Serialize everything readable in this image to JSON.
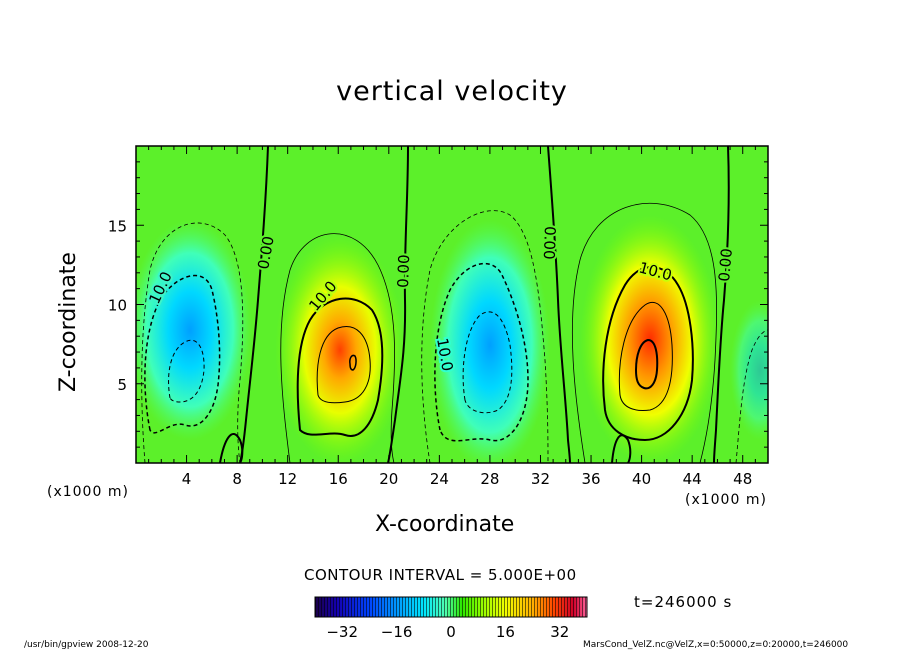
{
  "chart_data": {
    "type": "heatmap",
    "title": "vertical velocity",
    "xlabel": "X-coordinate",
    "ylabel": "Z-coordinate",
    "x_unit": "(x1000 m)",
    "y_unit": "(x1000 m)",
    "xlim": [
      0,
      50
    ],
    "ylim": [
      0,
      20
    ],
    "x_ticks": [
      4,
      8,
      12,
      16,
      20,
      24,
      28,
      32,
      36,
      40,
      44,
      48
    ],
    "y_ticks": [
      5,
      10,
      15
    ],
    "contour_interval_label": "CONTOUR INTERVAL = 5.000E+00",
    "contour_labels": [
      "0.00",
      "0.00",
      "0.00",
      "0.00",
      "10.0",
      "10.0",
      "10.0",
      "10.0"
    ],
    "cells": [
      {
        "name": "updraft",
        "x": 16.5,
        "z": 7.5,
        "peak": 30
      },
      {
        "name": "updraft",
        "x": 40.5,
        "z": 6.5,
        "peak": 34
      },
      {
        "name": "downdraft",
        "x": 4,
        "z": 7,
        "peak": -18
      },
      {
        "name": "downdraft",
        "x": 28.5,
        "z": 7.5,
        "peak": -20
      },
      {
        "name": "downdraft",
        "x": 49.5,
        "z": 6.5,
        "peak": -6
      }
    ],
    "colorbar": {
      "ticks": [
        -32,
        -16,
        0,
        16,
        32
      ],
      "min": -40,
      "max": 40,
      "colors": [
        "#1a0047",
        "#1400b0",
        "#0044ff",
        "#00a8ff",
        "#00e8ff",
        "#50ffb0",
        "#2de800",
        "#9cff00",
        "#f2ff00",
        "#ffb000",
        "#ff4400",
        "#d0002a",
        "#ff66a0"
      ]
    },
    "time_label": "t=246000 s"
  },
  "footer": {
    "left": "/usr/bin/gpview   2008-12-20",
    "right": "MarsCond_VelZ.nc@VelZ,x=0:50000,z=0:20000,t=246000"
  }
}
